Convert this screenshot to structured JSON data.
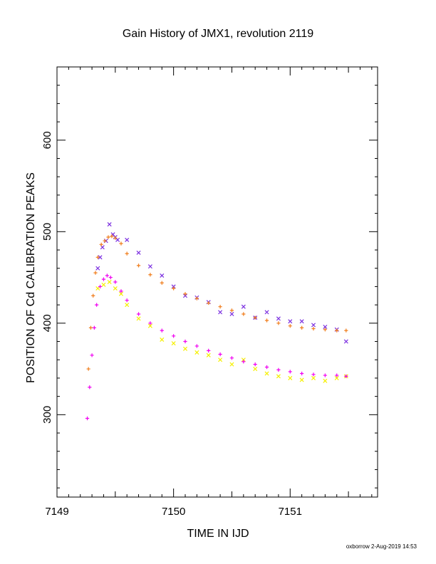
{
  "footer": "oxborrow 2-Aug-2019 14:53",
  "chart_data": {
    "type": "scatter",
    "title": "Gain History of JMX1, revolution 2119",
    "xlabel": "TIME IN IJD",
    "ylabel": "POSITION OF Cd CALIBRATION PEAKS",
    "xlim": [
      7149.0,
      7151.75
    ],
    "ylim": [
      210,
      680
    ],
    "xticks": [
      7149,
      7150,
      7151
    ],
    "yticks": [
      300,
      400,
      500,
      600
    ],
    "grid": false,
    "series": [
      {
        "color": "#7B2FE0",
        "marker": "x",
        "x": [
          7149.35,
          7149.37,
          7149.39,
          7149.42,
          7149.45,
          7149.48,
          7149.5,
          7149.52,
          7149.6,
          7149.7,
          7149.8,
          7149.9,
          7150.0,
          7150.1,
          7150.2,
          7150.3,
          7150.4,
          7150.5,
          7150.6,
          7150.7,
          7150.8,
          7150.9,
          7151.0,
          7151.1,
          7151.2,
          7151.3,
          7151.4,
          7151.48
        ],
        "y": [
          460,
          472,
          483,
          490,
          508,
          497,
          494,
          491,
          491,
          477,
          462,
          452,
          440,
          430,
          428,
          423,
          412,
          410,
          418,
          406,
          412,
          405,
          402,
          402,
          398,
          396,
          393,
          380
        ]
      },
      {
        "color": "#F07C1A",
        "marker": "+",
        "x": [
          7149.27,
          7149.29,
          7149.31,
          7149.33,
          7149.35,
          7149.38,
          7149.41,
          7149.44,
          7149.47,
          7149.5,
          7149.55,
          7149.6,
          7149.7,
          7149.8,
          7149.9,
          7150.0,
          7150.1,
          7150.2,
          7150.3,
          7150.4,
          7150.5,
          7150.6,
          7150.7,
          7150.8,
          7150.9,
          7151.0,
          7151.1,
          7151.2,
          7151.3,
          7151.4,
          7151.48
        ],
        "y": [
          350,
          395,
          430,
          455,
          472,
          486,
          490,
          494,
          495,
          493,
          487,
          476,
          463,
          453,
          444,
          438,
          432,
          427,
          422,
          418,
          414,
          410,
          406,
          403,
          400,
          397,
          395,
          394,
          393,
          392,
          392
        ]
      },
      {
        "color": "#F5F000",
        "marker": "x",
        "x": [
          7149.35,
          7149.4,
          7149.45,
          7149.5,
          7149.55,
          7149.6,
          7149.7,
          7149.8,
          7149.9,
          7150.0,
          7150.1,
          7150.2,
          7150.3,
          7150.4,
          7150.5,
          7150.6,
          7150.7,
          7150.8,
          7150.9,
          7151.0,
          7151.1,
          7151.2,
          7151.3,
          7151.4,
          7151.48
        ],
        "y": [
          438,
          442,
          445,
          438,
          432,
          420,
          405,
          397,
          382,
          378,
          372,
          368,
          365,
          360,
          355,
          360,
          350,
          345,
          342,
          340,
          338,
          340,
          337,
          340,
          342
        ]
      },
      {
        "color": "#F000F0",
        "marker": "+",
        "x": [
          7149.26,
          7149.28,
          7149.3,
          7149.32,
          7149.34,
          7149.37,
          7149.4,
          7149.43,
          7149.46,
          7149.5,
          7149.55,
          7149.6,
          7149.7,
          7149.8,
          7149.9,
          7150.0,
          7150.1,
          7150.2,
          7150.3,
          7150.4,
          7150.5,
          7150.6,
          7150.7,
          7150.8,
          7150.9,
          7151.0,
          7151.1,
          7151.2,
          7151.3,
          7151.4,
          7151.48
        ],
        "y": [
          296,
          330,
          365,
          395,
          420,
          440,
          448,
          452,
          450,
          445,
          435,
          425,
          410,
          400,
          392,
          386,
          380,
          375,
          370,
          366,
          362,
          358,
          355,
          352,
          349,
          347,
          345,
          344,
          343,
          343,
          342
        ]
      }
    ]
  }
}
